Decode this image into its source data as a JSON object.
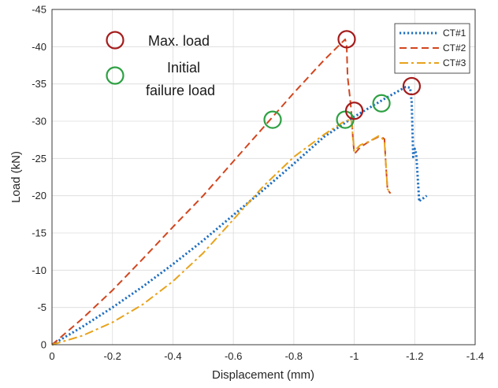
{
  "chart_data": {
    "type": "line",
    "xlabel": "Displacement (mm)",
    "ylabel": "Load (kN)",
    "xlim": [
      0,
      -1.4
    ],
    "ylim": [
      0,
      -45
    ],
    "x_ticks": [
      0,
      -0.2,
      -0.4,
      -0.6,
      -0.8,
      -1,
      -1.2,
      -1.4
    ],
    "x_tick_labels": [
      "0",
      "-0.2",
      "-0.4",
      "-0.6",
      "-0.8",
      "-1",
      "-1.2",
      "-1.4"
    ],
    "y_ticks": [
      0,
      -5,
      -10,
      -15,
      -20,
      -25,
      -30,
      -35,
      -40,
      -45
    ],
    "y_tick_labels": [
      "0",
      "-5",
      "-10",
      "-15",
      "-20",
      "-25",
      "-30",
      "-35",
      "-40",
      "-45"
    ],
    "grid": true,
    "axis_orientation": "reversed: zero at bottom-left, negative values increase up and right",
    "legend_position": "top-right",
    "series": [
      {
        "name": "CT#1",
        "color": "#1f6fc1",
        "dash": "dotted",
        "x": [
          0,
          -0.1,
          -0.2,
          -0.3,
          -0.4,
          -0.5,
          -0.6,
          -0.7,
          -0.8,
          -0.9,
          -1.0,
          -1.1,
          -1.17,
          -1.185,
          -1.19,
          -1.195,
          -1.2,
          -1.205,
          -1.21,
          -1.215,
          -1.22,
          -1.23,
          -1.24
        ],
        "y": [
          0,
          -2.4,
          -5.0,
          -7.8,
          -10.8,
          -14.0,
          -17.4,
          -20.8,
          -24.3,
          -27.9,
          -30.6,
          -33.0,
          -34.6,
          -34.5,
          -32.5,
          -25.2,
          -26.3,
          -25.6,
          -22.5,
          -19.2,
          -19.5,
          -19.7,
          -20.0
        ]
      },
      {
        "name": "CT#2",
        "color": "#d2451e",
        "dash": "dashed",
        "x": [
          0,
          -0.1,
          -0.2,
          -0.3,
          -0.4,
          -0.5,
          -0.6,
          -0.7,
          -0.8,
          -0.9,
          -0.97,
          -0.975,
          -0.978,
          -0.985,
          -0.99,
          -0.995,
          -1.0,
          -1.02,
          -1.05,
          -1.08,
          -1.09,
          -1.1,
          -1.105,
          -1.11,
          -1.12
        ],
        "y": [
          0,
          -3.5,
          -7.3,
          -11.5,
          -15.8,
          -20.0,
          -24.6,
          -29.2,
          -33.8,
          -38.2,
          -41.0,
          -40.0,
          -36.0,
          -33.5,
          -31.5,
          -28.0,
          -25.6,
          -26.5,
          -27.3,
          -27.9,
          -27.9,
          -27.6,
          -24.0,
          -20.8,
          -20.3
        ]
      },
      {
        "name": "CT#3",
        "color": "#e8a21b",
        "dash": "dashdot",
        "x": [
          0,
          -0.1,
          -0.2,
          -0.3,
          -0.4,
          -0.5,
          -0.6,
          -0.7,
          -0.8,
          -0.9,
          -0.96,
          -0.99,
          -1.0,
          -1.02,
          -1.05,
          -1.08,
          -1.09,
          -1.1,
          -1.105,
          -1.11,
          -1.12
        ],
        "y": [
          0,
          -1.2,
          -3.0,
          -5.4,
          -8.5,
          -12.3,
          -16.8,
          -21.3,
          -25.2,
          -28.2,
          -29.8,
          -30.3,
          -26.0,
          -26.8,
          -27.3,
          -28.0,
          -27.8,
          -27.3,
          -24.0,
          -20.9,
          -20.3
        ]
      }
    ],
    "markers": {
      "max_load": {
        "color": "#a51c1c",
        "points": [
          {
            "x": -0.975,
            "y": -41.0
          },
          {
            "x": -1.0,
            "y": -31.4
          },
          {
            "x": -1.19,
            "y": -34.7
          }
        ]
      },
      "initial_failure": {
        "color": "#2ea043",
        "points": [
          {
            "x": -0.73,
            "y": -30.2
          },
          {
            "x": -0.97,
            "y": -30.2
          },
          {
            "x": -1.09,
            "y": -32.4
          }
        ]
      }
    },
    "annotations": {
      "max_load_label": "Max. load",
      "initial_failure_line1": "Initial",
      "initial_failure_line2": "failure load"
    }
  }
}
